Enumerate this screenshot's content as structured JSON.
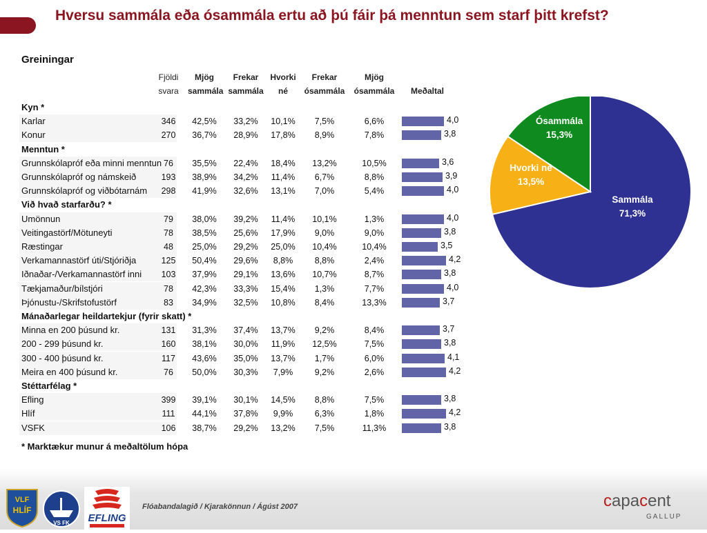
{
  "title": "Hversu sammála eða ósammála ertu að þú fáir þá menntun sem starf þitt krefst?",
  "table": {
    "heading": "Greiningar",
    "columns": {
      "n": "Fjöldi svara",
      "c1": "Mjög sammála",
      "c2": "Frekar sammála",
      "c3": "Hvorki né",
      "c4": "Frekar ósammála",
      "c5": "Mjög ósammála",
      "mean": "Meðaltal"
    },
    "groups": [
      {
        "label": "Kyn *",
        "rows": [
          {
            "label": "Karlar",
            "n": "346",
            "v": [
              "42,5%",
              "33,2%",
              "10,1%",
              "7,5%",
              "6,6%"
            ],
            "mean": 4.0,
            "mean_label": "4,0"
          },
          {
            "label": "Konur",
            "n": "270",
            "v": [
              "36,7%",
              "28,9%",
              "17,8%",
              "8,9%",
              "7,8%"
            ],
            "mean": 3.8,
            "mean_label": "3,8"
          }
        ]
      },
      {
        "label": "Menntun *",
        "rows": [
          {
            "label": "Grunnskólapróf eða minni menntun",
            "n": "76",
            "v": [
              "35,5%",
              "22,4%",
              "18,4%",
              "13,2%",
              "10,5%"
            ],
            "mean": 3.6,
            "mean_label": "3,6"
          },
          {
            "label": "Grunnskólapróf og námskeið",
            "n": "193",
            "v": [
              "38,9%",
              "34,2%",
              "11,4%",
              "6,7%",
              "8,8%"
            ],
            "mean": 3.9,
            "mean_label": "3,9"
          },
          {
            "label": "Grunnskólapróf og viðbótarnám",
            "n": "298",
            "v": [
              "41,9%",
              "32,6%",
              "13,1%",
              "7,0%",
              "5,4%"
            ],
            "mean": 4.0,
            "mean_label": "4,0"
          }
        ]
      },
      {
        "label": "Við hvað starfarðu? *",
        "rows": [
          {
            "label": "Umönnun",
            "n": "79",
            "v": [
              "38,0%",
              "39,2%",
              "11,4%",
              "10,1%",
              "1,3%"
            ],
            "mean": 4.0,
            "mean_label": "4,0"
          },
          {
            "label": "Veitingastörf/Mötuneyti",
            "n": "78",
            "v": [
              "38,5%",
              "25,6%",
              "17,9%",
              "9,0%",
              "9,0%"
            ],
            "mean": 3.8,
            "mean_label": "3,8"
          },
          {
            "label": "Ræstingar",
            "n": "48",
            "v": [
              "25,0%",
              "29,2%",
              "25,0%",
              "10,4%",
              "10,4%"
            ],
            "mean": 3.5,
            "mean_label": "3,5"
          },
          {
            "label": "Verkamannastörf úti/Stjóriðja",
            "n": "125",
            "v": [
              "50,4%",
              "29,6%",
              "8,8%",
              "8,8%",
              "2,4%"
            ],
            "mean": 4.2,
            "mean_label": "4,2"
          },
          {
            "label": "Iðnaðar-/Verkamannastörf inni",
            "n": "103",
            "v": [
              "37,9%",
              "29,1%",
              "13,6%",
              "10,7%",
              "8,7%"
            ],
            "mean": 3.8,
            "mean_label": "3,8"
          },
          {
            "label": "Tækjamaður/bílstjóri",
            "n": "78",
            "v": [
              "42,3%",
              "33,3%",
              "15,4%",
              "1,3%",
              "7,7%"
            ],
            "mean": 4.0,
            "mean_label": "4,0"
          },
          {
            "label": "Þjónustu-/Skrifstofustörf",
            "n": "83",
            "v": [
              "34,9%",
              "32,5%",
              "10,8%",
              "8,4%",
              "13,3%"
            ],
            "mean": 3.7,
            "mean_label": "3,7"
          }
        ]
      },
      {
        "label": "Mánaðarlegar heildartekjur (fyrir skatt) *",
        "rows": [
          {
            "label": "Minna en 200 þúsund kr.",
            "n": "131",
            "v": [
              "31,3%",
              "37,4%",
              "13,7%",
              "9,2%",
              "8,4%"
            ],
            "mean": 3.7,
            "mean_label": "3,7"
          },
          {
            "label": "200 - 299 þúsund kr.",
            "n": "160",
            "v": [
              "38,1%",
              "30,0%",
              "11,9%",
              "12,5%",
              "7,5%"
            ],
            "mean": 3.8,
            "mean_label": "3,8"
          },
          {
            "label": "300 - 400 þúsund kr.",
            "n": "117",
            "v": [
              "43,6%",
              "35,0%",
              "13,7%",
              "1,7%",
              "6,0%"
            ],
            "mean": 4.1,
            "mean_label": "4,1"
          },
          {
            "label": "Meira en 400 þúsund kr.",
            "n": "76",
            "v": [
              "50,0%",
              "30,3%",
              "7,9%",
              "9,2%",
              "2,6%"
            ],
            "mean": 4.2,
            "mean_label": "4,2"
          }
        ]
      },
      {
        "label": "Stéttarfélag *",
        "rows": [
          {
            "label": "Efling",
            "n": "399",
            "v": [
              "39,1%",
              "30,1%",
              "14,5%",
              "8,8%",
              "7,5%"
            ],
            "mean": 3.8,
            "mean_label": "3,8"
          },
          {
            "label": "Hlíf",
            "n": "111",
            "v": [
              "44,1%",
              "37,8%",
              "9,9%",
              "6,3%",
              "1,8%"
            ],
            "mean": 4.2,
            "mean_label": "4,2"
          },
          {
            "label": "VSFK",
            "n": "106",
            "v": [
              "38,7%",
              "29,2%",
              "13,2%",
              "7,5%",
              "11,3%"
            ],
            "mean": 3.8,
            "mean_label": "3,8"
          }
        ]
      }
    ],
    "footnote": "* Marktækur munur á meðaltölum hópa",
    "bar_color": "#6264a8"
  },
  "chart_data": [
    {
      "type": "pie",
      "slices": [
        {
          "label": "Sammála",
          "value": 71.3,
          "value_label": "71,3%",
          "color": "#2e3192"
        },
        {
          "label": "Hvorki né",
          "value": 13.5,
          "value_label": "13,5%",
          "color": "#f7b116"
        },
        {
          "label": "Ósammála",
          "value": 15.3,
          "value_label": "15,3%",
          "color": "#0f8a1e"
        }
      ]
    },
    {
      "type": "bar",
      "orientation": "horizontal",
      "series": [
        {
          "name": "Meðaltal"
        }
      ],
      "note": "values are the Meðaltal column of the table"
    }
  ],
  "footer": {
    "text": "Flóabandalagið  / Kjarakönnun / Ágúst 2007",
    "logos": [
      "VLF Hlíf",
      "VS FK",
      "EFLING"
    ],
    "capacent": "capacent",
    "gallup": "GALLUP"
  }
}
